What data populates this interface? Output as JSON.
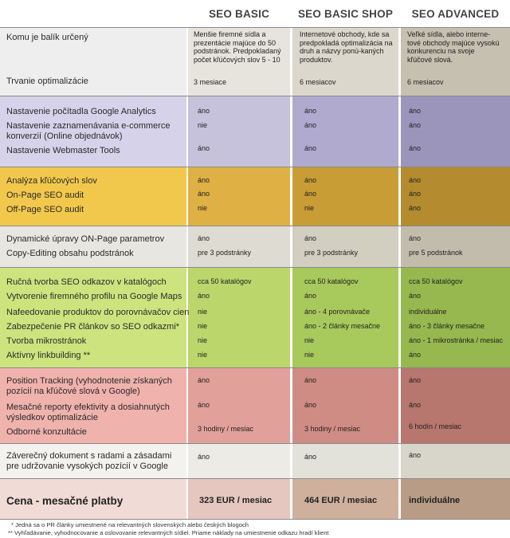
{
  "colors": {
    "sec_gray": [
      "#eeeeee",
      "#e7e4de",
      "#dbd7cc",
      "#c6c0b0"
    ],
    "sec_purple": [
      "#d6d2ea",
      "#c6c2dc",
      "#b0aacf",
      "#9c95bb"
    ],
    "sec_yellow": [
      "#f2c84c",
      "#dfb043",
      "#c99d36",
      "#b48c2f"
    ],
    "sec_lightgray": [
      "#e8e6e0",
      "#dedbd2",
      "#d2cec0",
      "#c2bcac"
    ],
    "sec_green": [
      "#cde47e",
      "#bbd66b",
      "#a8c95c",
      "#96b84e"
    ],
    "sec_red": [
      "#f0b2ad",
      "#e2a09a",
      "#cf8c84",
      "#b7766e"
    ],
    "sec_white": [
      "#f3f2ee",
      "#ecebe5",
      "#e2e1da",
      "#d8d5cb"
    ],
    "sec_price": [
      "#f1dbd6",
      "#e5c7bf",
      "#cfb09d",
      "#b89c85"
    ]
  },
  "headers": [
    "SEO BASIC",
    "SEO BASIC SHOP",
    "SEO ADVANCED"
  ],
  "rows": {
    "r1": {
      "label": "Komu je balík určený",
      "v1": "Menšie firemné sídla a prezentácie majúce do 50 podstránok. Predpokladaný počet kľúčových slov 5 - 10",
      "v2": "Internetové obchody, kde sa predpokladá optimalizácia na druh a názvy ponú-kaných produktov.",
      "v3": "Veľké sídla, alebo interne-tové obchody majúce vysokú konkurenciu na svoje kľúčové slová."
    },
    "r2": {
      "label": "Trvanie optimalizácie",
      "v1": "3 mesiace",
      "v2": "6 mesiacov",
      "v3": "6 mesiacov"
    },
    "r3": {
      "label": "Nastavenie počítadla Google Analytics",
      "v1": "áno",
      "v2": "áno",
      "v3": "áno"
    },
    "r4": {
      "label": "Nastavenie zaznamenávania e-commerce konverzií (Online objednávok)",
      "v1": "nie",
      "v2": "áno",
      "v3": "áno"
    },
    "r5": {
      "label": "Nastavenie Webmaster Tools",
      "v1": "áno",
      "v2": "áno",
      "v3": "áno"
    },
    "r6": {
      "label": "Analýza kľúčových slov",
      "v1": "áno",
      "v2": "áno",
      "v3": "áno"
    },
    "r7": {
      "label": "On-Page SEO audit",
      "v1": "áno",
      "v2": "áno",
      "v3": "áno"
    },
    "r8": {
      "label": "Off-Page SEO audit",
      "v1": "nie",
      "v2": "nie",
      "v3": "áno"
    },
    "r9": {
      "label": "Dynamické úpravy ON-Page parametrov",
      "v1": "áno",
      "v2": "áno",
      "v3": "áno"
    },
    "r10": {
      "label": "Copy-Editing obsahu podstránok",
      "v1": "pre 3 podstránky",
      "v2": "pre 3 podstránky",
      "v3": "pre 5 podstránok"
    },
    "r11": {
      "label": "Ručná tvorba SEO odkazov v katalógoch",
      "v1": "cca 50 katalógov",
      "v2": "cca 50 katalógov",
      "v3": "cca 50 katalógov"
    },
    "r12": {
      "label": "Vytvorenie firemného profilu na Google Maps",
      "v1": "áno",
      "v2": "áno",
      "v3": "áno"
    },
    "r13": {
      "label": "Nafeedovanie produktov do porovnávačov cien",
      "v1": "nie",
      "v2": "áno - 4 porovnávače",
      "v3": "individuálne"
    },
    "r14": {
      "label": "Zabezpečenie PR článkov so SEO odkazmi*",
      "v1": "nie",
      "v2": "áno - 2 články mesačne",
      "v3": "áno - 3 články mesačne"
    },
    "r15": {
      "label": "Tvorba mikrostránok",
      "v1": "nie",
      "v2": "nie",
      "v3": "áno - 1 mikrostránka / mesiac"
    },
    "r16": {
      "label": "Aktívny linkbuilding **",
      "v1": "nie",
      "v2": "nie",
      "v3": "áno"
    },
    "r17": {
      "label": "Position Tracking (vyhodnotenie získaných pozícií na kľúčové slová v Google)",
      "v1": "áno",
      "v2": "áno",
      "v3": "áno"
    },
    "r18": {
      "label": "Mesačné reporty efektivity a dosiahnutých výsledkov optimalizácie",
      "v1": "áno",
      "v2": "áno",
      "v3": "áno"
    },
    "r19": {
      "label": "Odborné konzultácie",
      "v1": "3 hodiny / mesiac",
      "v2": "3 hodiny / mesiac",
      "v3": "6 hodín / mesiac"
    },
    "r20": {
      "label": "Záverečný dokument s radami a zásadami pre udržovanie vysokých pozícií v Google",
      "v1": "áno",
      "v2": "áno",
      "v3": "áno"
    }
  },
  "price": {
    "label": "Cena - mesačné platby",
    "v1": "323 EUR / mesiac",
    "v2": "464 EUR / mesiac",
    "v3": "individuálne"
  },
  "footnotes": [
    "* Jedná sa o PR články umiestnené na relevantných slovenských alebo českých blogoch",
    "** Vyhľadávanie, vyhodnocovanie a oslovovanie relevantných sídiel. Priame náklady na umiestnenie odkazu hradí klient"
  ]
}
